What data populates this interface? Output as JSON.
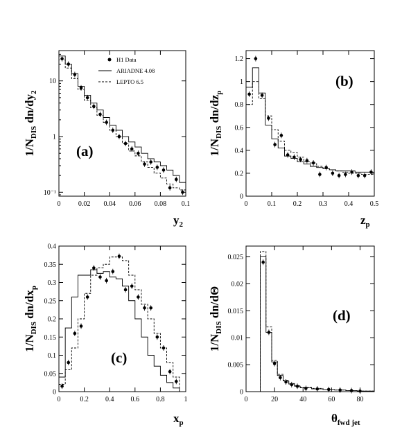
{
  "legend": {
    "items": [
      {
        "label": "H1 Data",
        "style": "points"
      },
      {
        "label": "ARIADNE 4.08",
        "style": "solid"
      },
      {
        "label": "LEPTO 6.5",
        "style": "dashed"
      }
    ]
  },
  "chart_data": [
    {
      "type": "line",
      "panel_label": "(a)",
      "ylabel": "1/N_DIS dn/dy_2",
      "xlabel": "y_2",
      "xlim": [
        0,
        0.1
      ],
      "ylim": [
        0.085,
        35
      ],
      "yscale": "log",
      "xticks": [
        0,
        0.02,
        0.04,
        0.06,
        0.08,
        0.1
      ],
      "xtick_labels": [
        "0",
        "0.02",
        "0.04",
        "0.06",
        "0.08",
        "0.1"
      ],
      "yticks": [
        0.1,
        1,
        10
      ],
      "ytick_labels": [
        "10⁻¹",
        "1",
        "10"
      ],
      "bin_edges": [
        0,
        0.005,
        0.01,
        0.015,
        0.02,
        0.025,
        0.03,
        0.035,
        0.04,
        0.045,
        0.05,
        0.055,
        0.06,
        0.065,
        0.07,
        0.075,
        0.08,
        0.085,
        0.09,
        0.095,
        0.1
      ],
      "series": [
        {
          "name": "H1 Data",
          "style": "points",
          "x": [
            0.0025,
            0.0075,
            0.0125,
            0.0175,
            0.0225,
            0.0275,
            0.0325,
            0.0375,
            0.0425,
            0.0475,
            0.0525,
            0.0575,
            0.0625,
            0.0675,
            0.0725,
            0.0775,
            0.0825,
            0.0875,
            0.0925,
            0.0975
          ],
          "y": [
            25,
            20,
            13,
            7.5,
            5,
            3.5,
            2.5,
            1.8,
            1.3,
            1.0,
            0.75,
            0.6,
            0.5,
            0.32,
            0.35,
            0.28,
            0.25,
            0.12,
            0.17,
            0.1
          ]
        },
        {
          "name": "ARIADNE 4.08",
          "style": "solid",
          "y": [
            28,
            20,
            13.5,
            8,
            5.5,
            4,
            3,
            2.2,
            1.6,
            1.3,
            1.0,
            0.8,
            0.65,
            0.5,
            0.4,
            0.35,
            0.3,
            0.25,
            0.2,
            0.15
          ]
        },
        {
          "name": "LEPTO 6.5",
          "style": "dashed",
          "y": [
            24,
            17,
            11,
            7,
            4.5,
            3.3,
            2.4,
            1.8,
            1.3,
            1.0,
            0.75,
            0.55,
            0.45,
            0.35,
            0.28,
            0.22,
            0.18,
            0.14,
            0.12,
            0.11
          ]
        }
      ]
    },
    {
      "type": "line",
      "panel_label": "(b)",
      "ylabel": "1/N_DIS dn/dz_p",
      "xlabel": "z_p",
      "xlim": [
        0,
        0.5
      ],
      "ylim": [
        0,
        1.27
      ],
      "yscale": "linear",
      "xticks": [
        0,
        0.1,
        0.2,
        0.3,
        0.4,
        0.5
      ],
      "xtick_labels": [
        "0",
        "0.1",
        "0.2",
        "0.3",
        "0.4",
        "0.5"
      ],
      "yticks": [
        0,
        0.2,
        0.4,
        0.6,
        0.8,
        1.0,
        1.2
      ],
      "ytick_labels": [
        "0",
        "0.2",
        "0.4",
        "0.6",
        "0.8",
        "1",
        "1.2"
      ],
      "bin_edges": [
        0,
        0.025,
        0.05,
        0.075,
        0.1,
        0.125,
        0.15,
        0.175,
        0.2,
        0.225,
        0.25,
        0.275,
        0.3,
        0.325,
        0.35,
        0.375,
        0.4,
        0.425,
        0.45,
        0.475,
        0.5
      ],
      "series": [
        {
          "name": "H1 Data",
          "style": "points",
          "x": [
            0.0125,
            0.0375,
            0.0625,
            0.0875,
            0.1125,
            0.1375,
            0.1625,
            0.1875,
            0.2125,
            0.2375,
            0.2625,
            0.2875,
            0.3125,
            0.3375,
            0.3625,
            0.3875,
            0.4125,
            0.4375,
            0.4625,
            0.4875
          ],
          "y": [
            0.89,
            1.2,
            0.88,
            0.68,
            0.45,
            0.53,
            0.36,
            0.34,
            0.32,
            0.31,
            0.29,
            0.19,
            0.25,
            0.2,
            0.18,
            0.19,
            0.21,
            0.18,
            0.18,
            0.21
          ]
        },
        {
          "name": "ARIADNE 4.08",
          "style": "solid",
          "y": [
            0.95,
            1.12,
            0.9,
            0.62,
            0.5,
            0.42,
            0.35,
            0.33,
            0.3,
            0.28,
            0.26,
            0.25,
            0.24,
            0.23,
            0.22,
            0.22,
            0.22,
            0.21,
            0.21,
            0.21
          ]
        },
        {
          "name": "LEPTO 6.5",
          "style": "dashed",
          "y": [
            0.8,
            1.0,
            0.85,
            0.7,
            0.58,
            0.48,
            0.4,
            0.38,
            0.34,
            0.3,
            0.29,
            0.26,
            0.24,
            0.23,
            0.22,
            0.21,
            0.2,
            0.2,
            0.19,
            0.19
          ]
        }
      ]
    },
    {
      "type": "line",
      "panel_label": "(c)",
      "ylabel": "1/N_DIS dn/dx_p",
      "xlabel": "x_p",
      "xlim": [
        0,
        1
      ],
      "ylim": [
        0,
        0.4
      ],
      "yscale": "linear",
      "xticks": [
        0,
        0.2,
        0.4,
        0.6,
        0.8,
        1
      ],
      "xtick_labels": [
        "0",
        "0.2",
        "0.4",
        "0.6",
        "0.8",
        "1"
      ],
      "yticks": [
        0,
        0.05,
        0.1,
        0.15,
        0.2,
        0.25,
        0.3,
        0.35,
        0.4
      ],
      "ytick_labels": [
        "0",
        "0.05",
        "0.1",
        "0.15",
        "0.2",
        "0.25",
        "0.3",
        "0.35",
        "0.4"
      ],
      "bin_edges": [
        0,
        0.05,
        0.1,
        0.15,
        0.2,
        0.25,
        0.3,
        0.35,
        0.4,
        0.45,
        0.5,
        0.55,
        0.6,
        0.65,
        0.7,
        0.75,
        0.8,
        0.85,
        0.9,
        0.95,
        1.0
      ],
      "series": [
        {
          "name": "H1 Data",
          "style": "points",
          "x": [
            0.025,
            0.075,
            0.125,
            0.175,
            0.225,
            0.275,
            0.325,
            0.375,
            0.425,
            0.475,
            0.525,
            0.575,
            0.625,
            0.675,
            0.725,
            0.775,
            0.825,
            0.875,
            0.925,
            0.975
          ],
          "y": [
            0.015,
            0.08,
            0.16,
            0.18,
            0.26,
            0.34,
            0.315,
            0.305,
            0.33,
            0.372,
            0.28,
            0.29,
            0.26,
            0.23,
            0.23,
            0.15,
            0.12,
            0.055,
            0.028,
            0.0
          ]
        },
        {
          "name": "ARIADNE 4.08",
          "style": "solid",
          "y": [
            0.04,
            0.175,
            0.26,
            0.32,
            0.32,
            0.335,
            0.325,
            0.33,
            0.315,
            0.31,
            0.29,
            0.25,
            0.2,
            0.15,
            0.1,
            0.07,
            0.045,
            0.025,
            0.01,
            0.0
          ]
        },
        {
          "name": "LEPTO 6.5",
          "style": "dashed",
          "y": [
            0.02,
            0.06,
            0.12,
            0.2,
            0.27,
            0.32,
            0.34,
            0.35,
            0.37,
            0.37,
            0.36,
            0.32,
            0.28,
            0.24,
            0.2,
            0.16,
            0.12,
            0.08,
            0.04,
            0.0
          ]
        }
      ]
    },
    {
      "type": "line",
      "panel_label": "(d)",
      "ylabel": "1/N_DIS dn/dΘ",
      "xlabel": "θ_fwd jet",
      "xlim": [
        0,
        90
      ],
      "ylim": [
        0,
        0.027
      ],
      "yscale": "linear",
      "xticks": [
        0,
        20,
        40,
        60,
        80
      ],
      "xtick_labels": [
        "0",
        "20",
        "40",
        "60",
        "80"
      ],
      "yticks": [
        0,
        0.005,
        0.01,
        0.015,
        0.02,
        0.025
      ],
      "ytick_labels": [
        "0",
        "0.005",
        "0.01",
        "0.015",
        "0.02",
        "0.025"
      ],
      "bin_edges": [
        10,
        14,
        18,
        22,
        26,
        30,
        34,
        38,
        46,
        54,
        62,
        70,
        78,
        90
      ],
      "series": [
        {
          "name": "H1 Data",
          "style": "points",
          "x": [
            12,
            16,
            20,
            24,
            28,
            32,
            36,
            42,
            50,
            58,
            66,
            74,
            80
          ],
          "y": [
            0.024,
            0.011,
            0.0052,
            0.0026,
            0.0018,
            0.0013,
            0.001,
            0.0006,
            0.0005,
            0.0004,
            0.0003,
            0.0002,
            0.0001
          ]
        },
        {
          "name": "ARIADNE 4.08",
          "style": "solid",
          "y": [
            0.025,
            0.011,
            0.0055,
            0.003,
            0.002,
            0.0014,
            0.001,
            0.0007,
            0.0005,
            0.0004,
            0.0003,
            0.0002,
            0.0001
          ]
        },
        {
          "name": "LEPTO 6.5",
          "style": "dashed",
          "y": [
            0.026,
            0.012,
            0.0058,
            0.0032,
            0.0021,
            0.0015,
            0.0011,
            0.0008,
            0.0006,
            0.0004,
            0.0003,
            0.0002,
            0.0001
          ]
        }
      ]
    }
  ]
}
